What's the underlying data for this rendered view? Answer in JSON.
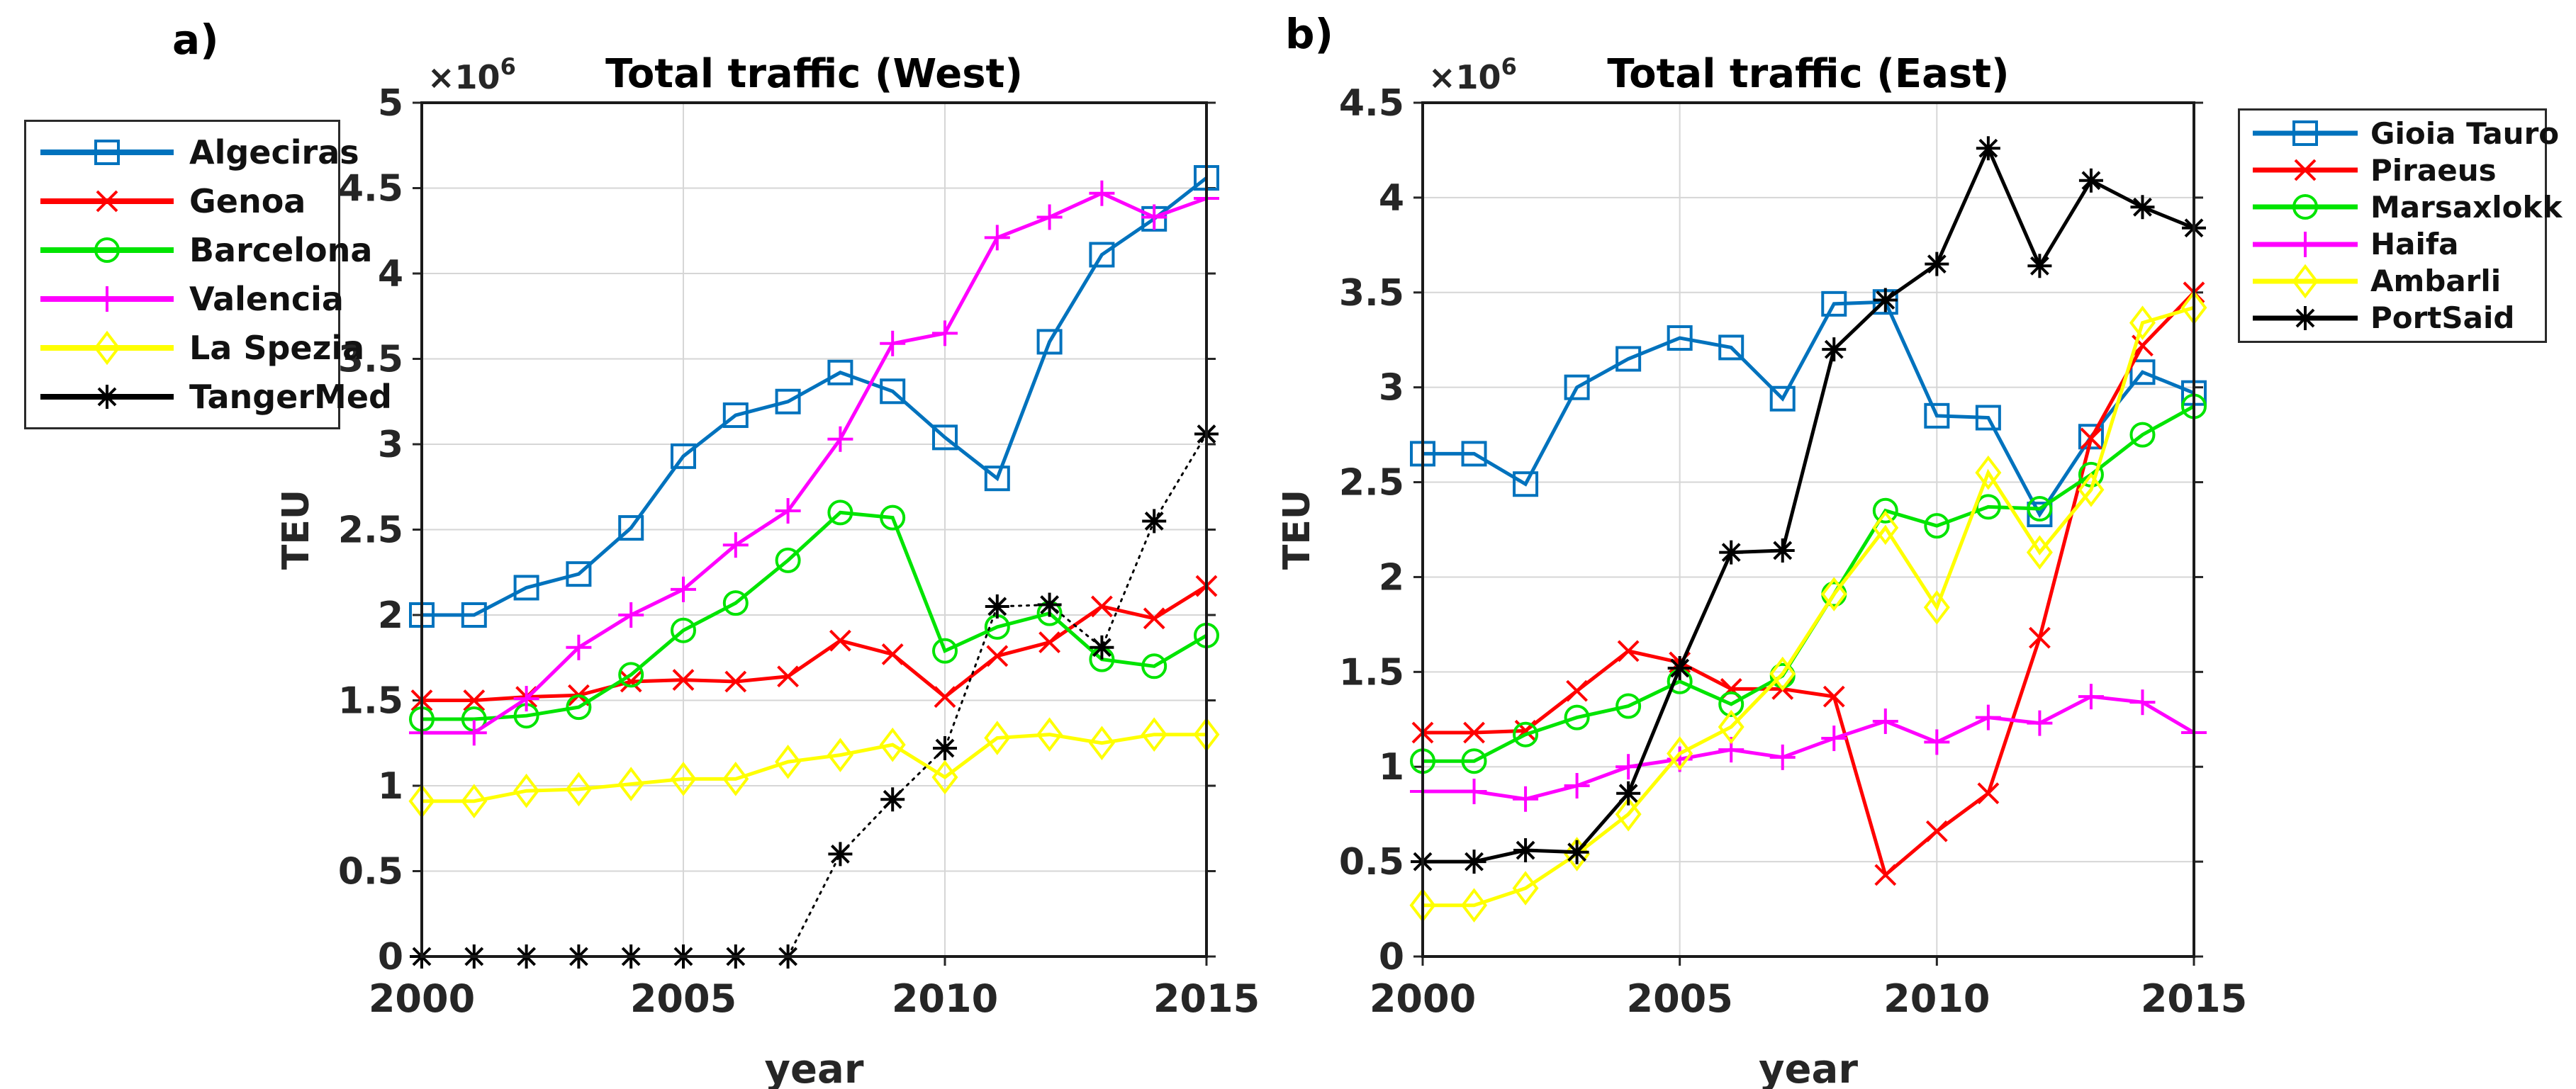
{
  "figure": {
    "panels": [
      {
        "id": "a",
        "label": "a)"
      },
      {
        "id": "b",
        "label": "b)"
      }
    ],
    "y_exponent_base": "×10",
    "y_exponent_power": "6"
  },
  "chart_data": [
    {
      "type": "line",
      "panel": "a",
      "title": "Total traffic (West)",
      "xlabel": "year",
      "ylabel": "TEU",
      "y_scale_label": "×10^6",
      "grid": true,
      "legend_position": "outside-left",
      "x": [
        2000,
        2001,
        2002,
        2003,
        2004,
        2005,
        2006,
        2007,
        2008,
        2009,
        2010,
        2011,
        2012,
        2013,
        2014,
        2015
      ],
      "xticks": [
        2000,
        2005,
        2010,
        2015
      ],
      "yticks": [
        0,
        0.5,
        1,
        1.5,
        2,
        2.5,
        3,
        3.5,
        4,
        4.5,
        5
      ],
      "ylim": [
        0,
        5
      ],
      "series": [
        {
          "name": "Algeciras",
          "color": "#0072BD",
          "marker": "square",
          "line_style": "solid",
          "values": [
            2.0,
            2.0,
            2.16,
            2.24,
            2.51,
            2.93,
            3.17,
            3.25,
            3.42,
            3.31,
            3.04,
            2.8,
            3.6,
            4.11,
            4.32,
            4.56
          ]
        },
        {
          "name": "Genoa",
          "color": "#FF0000",
          "marker": "x",
          "line_style": "solid",
          "values": [
            1.5,
            1.5,
            1.52,
            1.53,
            1.61,
            1.62,
            1.61,
            1.64,
            1.85,
            1.77,
            1.52,
            1.76,
            1.84,
            2.05,
            1.98,
            2.17
          ]
        },
        {
          "name": "Barcelona",
          "color": "#00E400",
          "marker": "circle",
          "line_style": "solid",
          "values": [
            1.39,
            1.39,
            1.41,
            1.46,
            1.65,
            1.91,
            2.07,
            2.32,
            2.6,
            2.57,
            1.79,
            1.93,
            2.01,
            1.74,
            1.7,
            1.88
          ]
        },
        {
          "name": "Valencia",
          "color": "#FF00FF",
          "marker": "plus",
          "line_style": "solid",
          "values": [
            1.31,
            1.31,
            1.51,
            1.81,
            2.0,
            2.15,
            2.41,
            2.61,
            3.03,
            3.59,
            3.65,
            4.21,
            4.33,
            4.47,
            4.33,
            4.44
          ]
        },
        {
          "name": "La Spezia",
          "color": "#FFFF00",
          "marker": "diamond",
          "line_style": "solid",
          "values": [
            0.91,
            0.91,
            0.97,
            0.98,
            1.01,
            1.04,
            1.04,
            1.14,
            1.18,
            1.24,
            1.05,
            1.28,
            1.3,
            1.25,
            1.3,
            1.3
          ]
        },
        {
          "name": "TangerMed",
          "color": "#000000",
          "marker": "asterisk",
          "line_style": "dotted",
          "values": [
            0,
            0,
            0,
            0,
            0,
            0,
            0,
            0,
            0.6,
            0.92,
            1.22,
            2.05,
            2.06,
            1.81,
            2.55,
            3.06
          ]
        }
      ]
    },
    {
      "type": "line",
      "panel": "b",
      "title": "Total traffic (East)",
      "xlabel": "year",
      "ylabel": "TEU",
      "y_scale_label": "×10^6",
      "grid": true,
      "legend_position": "outside-right",
      "x": [
        2000,
        2001,
        2002,
        2003,
        2004,
        2005,
        2006,
        2007,
        2008,
        2009,
        2010,
        2011,
        2012,
        2013,
        2014,
        2015
      ],
      "xticks": [
        2000,
        2005,
        2010,
        2015
      ],
      "yticks": [
        0,
        0.5,
        1,
        1.5,
        2,
        2.5,
        3,
        3.5,
        4,
        4.5
      ],
      "ylim": [
        0,
        4.5
      ],
      "series": [
        {
          "name": "Gioia Tauro",
          "color": "#0072BD",
          "marker": "square",
          "line_style": "solid",
          "values": [
            2.65,
            2.65,
            2.49,
            3.0,
            3.15,
            3.26,
            3.21,
            2.94,
            3.44,
            3.45,
            2.85,
            2.84,
            2.33,
            2.74,
            3.08,
            2.97
          ]
        },
        {
          "name": "Piraeus",
          "color": "#FF0000",
          "marker": "x",
          "line_style": "solid",
          "values": [
            1.18,
            1.18,
            1.19,
            1.4,
            1.61,
            1.55,
            1.41,
            1.41,
            1.37,
            0.43,
            0.66,
            0.86,
            1.68,
            2.73,
            3.22,
            3.5
          ]
        },
        {
          "name": "Marsaxlokk",
          "color": "#00E400",
          "marker": "circle",
          "line_style": "solid",
          "values": [
            1.03,
            1.03,
            1.17,
            1.26,
            1.32,
            1.45,
            1.33,
            1.48,
            1.91,
            2.35,
            2.27,
            2.37,
            2.36,
            2.54,
            2.75,
            2.9
          ]
        },
        {
          "name": "Haifa",
          "color": "#FF00FF",
          "marker": "plus",
          "line_style": "solid",
          "values": [
            0.87,
            0.87,
            0.83,
            0.9,
            1.0,
            1.04,
            1.09,
            1.05,
            1.15,
            1.24,
            1.13,
            1.26,
            1.23,
            1.37,
            1.34,
            1.18
          ]
        },
        {
          "name": "Ambarli",
          "color": "#FFFF00",
          "marker": "diamond",
          "line_style": "solid",
          "values": [
            0.27,
            0.27,
            0.36,
            0.54,
            0.75,
            1.07,
            1.21,
            1.49,
            1.91,
            2.26,
            1.84,
            2.55,
            2.13,
            2.46,
            3.34,
            3.42
          ]
        },
        {
          "name": "PortSaid",
          "color": "#000000",
          "marker": "asterisk",
          "line_style": "solid",
          "values": [
            0.5,
            0.5,
            0.56,
            0.55,
            0.86,
            1.52,
            2.13,
            2.14,
            3.2,
            3.46,
            3.65,
            4.26,
            3.64,
            4.09,
            3.95,
            3.84
          ]
        }
      ]
    }
  ]
}
